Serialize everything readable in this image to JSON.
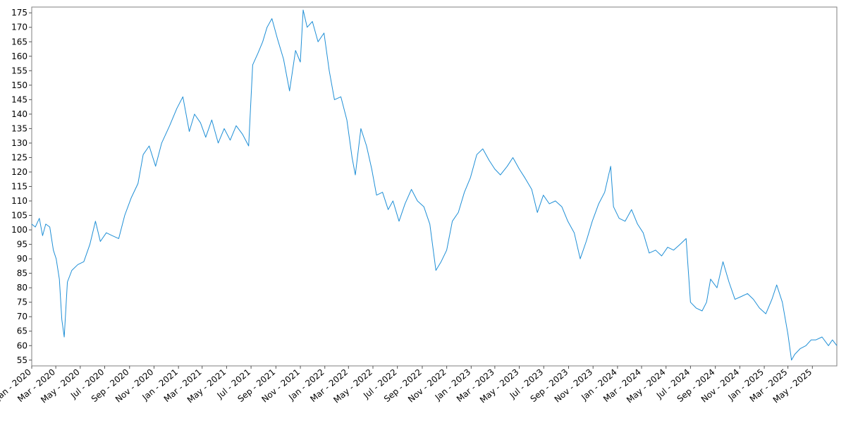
{
  "chart_data": {
    "type": "line",
    "title": "",
    "xlabel": "",
    "ylabel": "",
    "x_range": [
      "2020-01-01",
      "2025-07-01"
    ],
    "ylim": [
      53,
      177
    ],
    "grid": false,
    "legend": "none",
    "line_color": "#1f8fd6",
    "y_ticks": [
      55,
      60,
      65,
      70,
      75,
      80,
      85,
      90,
      95,
      100,
      105,
      110,
      115,
      120,
      125,
      130,
      135,
      140,
      145,
      150,
      155,
      160,
      165,
      170,
      175
    ],
    "x_ticks": [
      {
        "date": "2020-01-01",
        "label": "Jan - 2020"
      },
      {
        "date": "2020-03-01",
        "label": "Mar - 2020"
      },
      {
        "date": "2020-05-01",
        "label": "May - 2020"
      },
      {
        "date": "2020-07-01",
        "label": "Jul - 2020"
      },
      {
        "date": "2020-09-01",
        "label": "Sep - 2020"
      },
      {
        "date": "2020-11-01",
        "label": "Nov - 2020"
      },
      {
        "date": "2021-01-01",
        "label": "Jan - 2021"
      },
      {
        "date": "2021-03-01",
        "label": "Mar - 2021"
      },
      {
        "date": "2021-05-01",
        "label": "May - 2021"
      },
      {
        "date": "2021-07-01",
        "label": "Jul - 2021"
      },
      {
        "date": "2021-09-01",
        "label": "Sep - 2021"
      },
      {
        "date": "2021-11-01",
        "label": "Nov - 2021"
      },
      {
        "date": "2022-01-01",
        "label": "Jan - 2022"
      },
      {
        "date": "2022-03-01",
        "label": "Mar - 2022"
      },
      {
        "date": "2022-05-01",
        "label": "May - 2022"
      },
      {
        "date": "2022-07-01",
        "label": "Jul - 2022"
      },
      {
        "date": "2022-09-01",
        "label": "Sep - 2022"
      },
      {
        "date": "2022-11-01",
        "label": "Nov - 2022"
      },
      {
        "date": "2023-01-01",
        "label": "Jan - 2023"
      },
      {
        "date": "2023-03-01",
        "label": "Mar - 2023"
      },
      {
        "date": "2023-05-01",
        "label": "May - 2023"
      },
      {
        "date": "2023-07-01",
        "label": "Jul - 2023"
      },
      {
        "date": "2023-09-01",
        "label": "Sep - 2023"
      },
      {
        "date": "2023-11-01",
        "label": "Nov - 2023"
      },
      {
        "date": "2024-01-01",
        "label": "Jan - 2024"
      },
      {
        "date": "2024-03-01",
        "label": "Mar - 2024"
      },
      {
        "date": "2024-05-01",
        "label": "May - 2024"
      },
      {
        "date": "2024-07-01",
        "label": "Jul - 2024"
      },
      {
        "date": "2024-09-01",
        "label": "Sep - 2024"
      },
      {
        "date": "2024-11-01",
        "label": "Nov - 2024"
      },
      {
        "date": "2025-01-01",
        "label": "Jan - 2025"
      },
      {
        "date": "2025-03-01",
        "label": "Mar - 2025"
      },
      {
        "date": "2025-05-01",
        "label": "May - 2025"
      }
    ],
    "series": [
      {
        "points": [
          [
            "2020-01-01",
            102
          ],
          [
            "2020-01-10",
            101
          ],
          [
            "2020-01-20",
            104
          ],
          [
            "2020-01-28",
            98
          ],
          [
            "2020-02-05",
            102
          ],
          [
            "2020-02-15",
            101
          ],
          [
            "2020-02-24",
            93
          ],
          [
            "2020-03-02",
            90
          ],
          [
            "2020-03-10",
            83
          ],
          [
            "2020-03-16",
            69
          ],
          [
            "2020-03-22",
            63
          ],
          [
            "2020-03-30",
            82
          ],
          [
            "2020-04-10",
            86
          ],
          [
            "2020-04-25",
            88
          ],
          [
            "2020-05-10",
            89
          ],
          [
            "2020-05-25",
            95
          ],
          [
            "2020-06-08",
            103
          ],
          [
            "2020-06-20",
            96
          ],
          [
            "2020-07-05",
            99
          ],
          [
            "2020-07-20",
            98
          ],
          [
            "2020-08-05",
            97
          ],
          [
            "2020-08-20",
            105
          ],
          [
            "2020-09-05",
            111
          ],
          [
            "2020-09-22",
            116
          ],
          [
            "2020-10-05",
            126
          ],
          [
            "2020-10-20",
            129
          ],
          [
            "2020-11-05",
            122
          ],
          [
            "2020-11-20",
            130
          ],
          [
            "2020-12-10",
            136
          ],
          [
            "2020-12-28",
            142
          ],
          [
            "2021-01-12",
            146
          ],
          [
            "2021-01-28",
            134
          ],
          [
            "2021-02-10",
            140
          ],
          [
            "2021-02-25",
            137
          ],
          [
            "2021-03-10",
            132
          ],
          [
            "2021-03-25",
            138
          ],
          [
            "2021-04-10",
            130
          ],
          [
            "2021-04-25",
            135
          ],
          [
            "2021-05-10",
            131
          ],
          [
            "2021-05-25",
            136
          ],
          [
            "2021-06-10",
            133
          ],
          [
            "2021-06-25",
            129
          ],
          [
            "2021-07-05",
            157
          ],
          [
            "2021-07-18",
            161
          ],
          [
            "2021-07-30",
            165
          ],
          [
            "2021-08-10",
            170
          ],
          [
            "2021-08-22",
            173
          ],
          [
            "2021-09-05",
            166
          ],
          [
            "2021-09-20",
            159
          ],
          [
            "2021-10-05",
            148
          ],
          [
            "2021-10-20",
            162
          ],
          [
            "2021-11-01",
            158
          ],
          [
            "2021-11-08",
            176
          ],
          [
            "2021-11-18",
            170
          ],
          [
            "2021-12-01",
            172
          ],
          [
            "2021-12-15",
            165
          ],
          [
            "2021-12-30",
            168
          ],
          [
            "2022-01-12",
            155
          ],
          [
            "2022-01-25",
            145
          ],
          [
            "2022-02-10",
            146
          ],
          [
            "2022-02-25",
            138
          ],
          [
            "2022-03-10",
            125
          ],
          [
            "2022-03-18",
            119
          ],
          [
            "2022-04-01",
            135
          ],
          [
            "2022-04-15",
            129
          ],
          [
            "2022-04-28",
            121
          ],
          [
            "2022-05-10",
            112
          ],
          [
            "2022-05-25",
            113
          ],
          [
            "2022-06-08",
            107
          ],
          [
            "2022-06-20",
            110
          ],
          [
            "2022-07-05",
            103
          ],
          [
            "2022-07-20",
            109
          ],
          [
            "2022-08-05",
            114
          ],
          [
            "2022-08-20",
            110
          ],
          [
            "2022-09-05",
            108
          ],
          [
            "2022-09-20",
            102
          ],
          [
            "2022-10-05",
            86
          ],
          [
            "2022-10-18",
            89
          ],
          [
            "2022-11-01",
            93
          ],
          [
            "2022-11-15",
            103
          ],
          [
            "2022-11-30",
            106
          ],
          [
            "2022-12-15",
            113
          ],
          [
            "2022-12-30",
            118
          ],
          [
            "2023-01-15",
            126
          ],
          [
            "2023-01-30",
            128
          ],
          [
            "2023-02-15",
            124
          ],
          [
            "2023-03-01",
            121
          ],
          [
            "2023-03-15",
            119
          ],
          [
            "2023-04-01",
            122
          ],
          [
            "2023-04-15",
            125
          ],
          [
            "2023-05-01",
            121
          ],
          [
            "2023-05-15",
            118
          ],
          [
            "2023-06-01",
            114
          ],
          [
            "2023-06-15",
            106
          ],
          [
            "2023-06-30",
            112
          ],
          [
            "2023-07-15",
            109
          ],
          [
            "2023-07-30",
            110
          ],
          [
            "2023-08-15",
            108
          ],
          [
            "2023-08-30",
            103
          ],
          [
            "2023-09-15",
            99
          ],
          [
            "2023-09-30",
            90
          ],
          [
            "2023-10-15",
            96
          ],
          [
            "2023-10-30",
            103
          ],
          [
            "2023-11-15",
            109
          ],
          [
            "2023-11-30",
            113
          ],
          [
            "2023-12-15",
            122
          ],
          [
            "2023-12-22",
            108
          ],
          [
            "2024-01-05",
            104
          ],
          [
            "2024-01-20",
            103
          ],
          [
            "2024-02-05",
            107
          ],
          [
            "2024-02-20",
            102
          ],
          [
            "2024-03-05",
            99
          ],
          [
            "2024-03-20",
            92
          ],
          [
            "2024-04-05",
            93
          ],
          [
            "2024-04-20",
            91
          ],
          [
            "2024-05-05",
            94
          ],
          [
            "2024-05-20",
            93
          ],
          [
            "2024-06-05",
            95
          ],
          [
            "2024-06-20",
            97
          ],
          [
            "2024-07-01",
            75
          ],
          [
            "2024-07-15",
            73
          ],
          [
            "2024-07-30",
            72
          ],
          [
            "2024-08-10",
            75
          ],
          [
            "2024-08-20",
            83
          ],
          [
            "2024-09-05",
            80
          ],
          [
            "2024-09-20",
            89
          ],
          [
            "2024-10-05",
            82
          ],
          [
            "2024-10-20",
            76
          ],
          [
            "2024-11-05",
            77
          ],
          [
            "2024-11-20",
            78
          ],
          [
            "2024-12-05",
            76
          ],
          [
            "2024-12-20",
            73
          ],
          [
            "2025-01-05",
            71
          ],
          [
            "2025-01-20",
            76
          ],
          [
            "2025-02-01",
            81
          ],
          [
            "2025-02-15",
            75
          ],
          [
            "2025-03-01",
            64
          ],
          [
            "2025-03-10",
            55
          ],
          [
            "2025-03-18",
            57
          ],
          [
            "2025-04-01",
            59
          ],
          [
            "2025-04-15",
            60
          ],
          [
            "2025-04-28",
            62
          ],
          [
            "2025-05-10",
            62
          ],
          [
            "2025-05-25",
            63
          ],
          [
            "2025-06-10",
            60
          ],
          [
            "2025-06-20",
            62
          ],
          [
            "2025-07-01",
            60
          ]
        ]
      }
    ]
  }
}
